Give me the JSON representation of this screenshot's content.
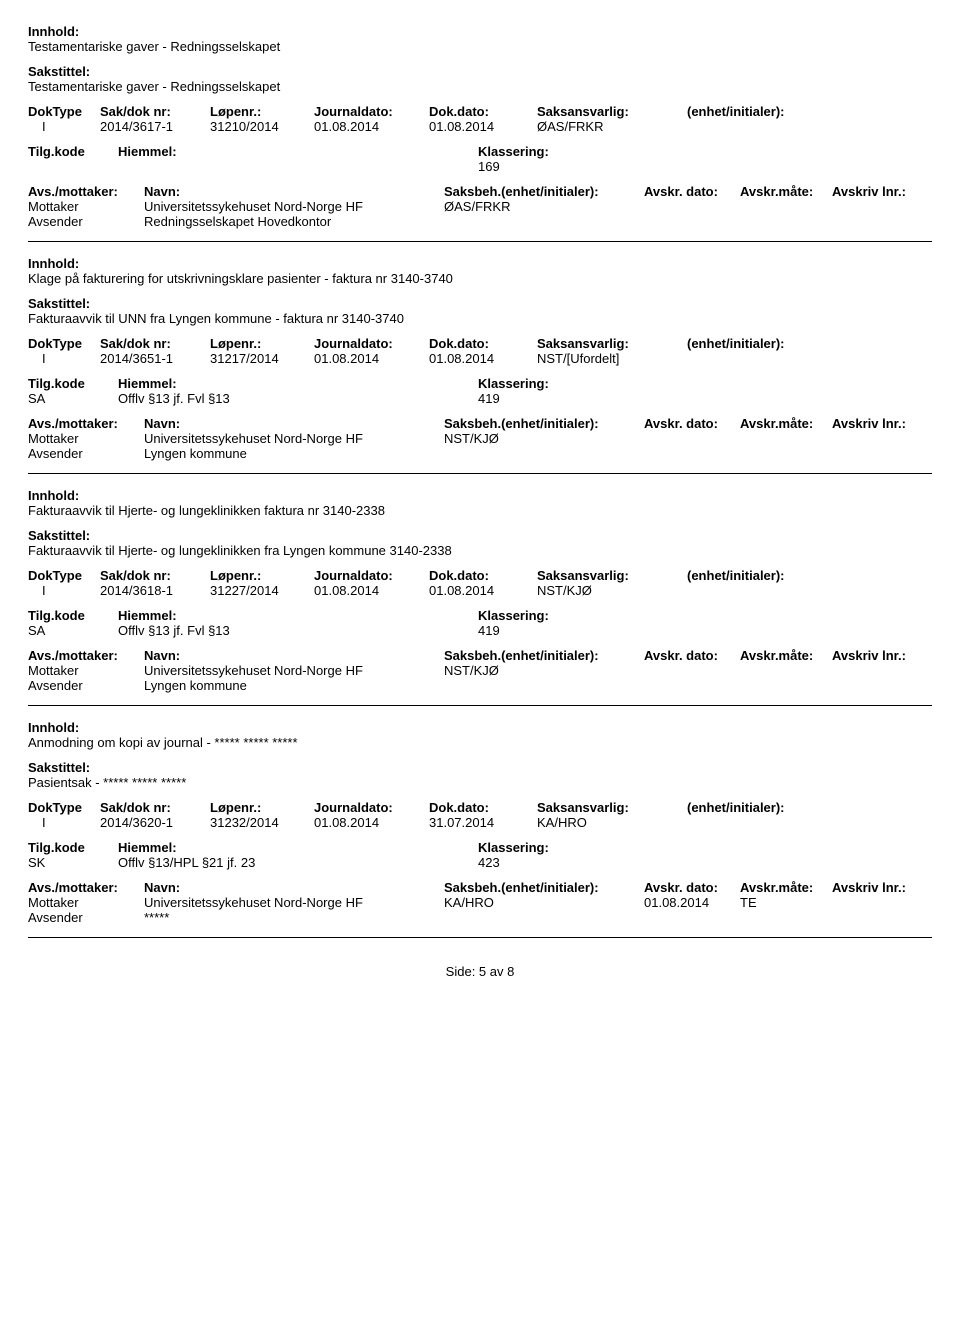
{
  "labels": {
    "innhold": "Innhold:",
    "sakstittel": "Sakstittel:",
    "doktype": "DokType",
    "sakdoknr": "Sak/dok nr:",
    "lopenr": "Løpenr.:",
    "journaldato": "Journaldato:",
    "dokdato": "Dok.dato:",
    "saksansvarlig": "Saksansvarlig:",
    "enhet": "(enhet/initialer):",
    "tilgkode": "Tilg.kode",
    "hjemmel": "Hiemmel:",
    "klassering": "Klassering:",
    "avsmottaker": "Avs./mottaker:",
    "navn": "Navn:",
    "saksbeh": "Saksbeh.(enhet/initialer):",
    "avskrdato": "Avskr. dato:",
    "avskrmate": "Avskr.måte:",
    "avskrivlnr": "Avskriv lnr.:",
    "mottaker": "Mottaker",
    "avsender": "Avsender"
  },
  "records": [
    {
      "innhold": "Testamentariske gaver - Redningsselskapet",
      "sakstittel": "Testamentariske gaver - Redningsselskapet",
      "doktype": "I",
      "sakdok": "2014/3617-1",
      "lopenr": "31210/2014",
      "jdato": "01.08.2014",
      "dokdato": "01.08.2014",
      "saksans": "ØAS/FRKR",
      "tilgkode": "",
      "hjemmel": "",
      "klassering": "169",
      "parties": [
        {
          "role": "Mottaker",
          "navn": "Universitetssykehuset Nord-Norge HF",
          "saksbeh": "ØAS/FRKR",
          "adato": "",
          "amate": ""
        },
        {
          "role": "Avsender",
          "navn": "Redningsselskapet Hovedkontor",
          "saksbeh": "",
          "adato": "",
          "amate": ""
        }
      ]
    },
    {
      "innhold": "Klage på fakturering for utskrivningsklare pasienter - faktura nr 3140-3740",
      "sakstittel": "Fakturaavvik til UNN fra Lyngen kommune - faktura nr 3140-3740",
      "doktype": "I",
      "sakdok": "2014/3651-1",
      "lopenr": "31217/2014",
      "jdato": "01.08.2014",
      "dokdato": "01.08.2014",
      "saksans": "NST/[Ufordelt]",
      "tilgkode": "SA",
      "hjemmel": "Offlv §13 jf. Fvl §13",
      "klassering": "419",
      "parties": [
        {
          "role": "Mottaker",
          "navn": "Universitetssykehuset Nord-Norge HF",
          "saksbeh": "NST/KJØ",
          "adato": "",
          "amate": ""
        },
        {
          "role": "Avsender",
          "navn": "Lyngen kommune",
          "saksbeh": "",
          "adato": "",
          "amate": ""
        }
      ]
    },
    {
      "innhold": "Fakturaavvik til Hjerte- og lungeklinikken faktura nr 3140-2338",
      "sakstittel": "Fakturaavvik til Hjerte- og lungeklinikken fra Lyngen kommune 3140-2338",
      "doktype": "I",
      "sakdok": "2014/3618-1",
      "lopenr": "31227/2014",
      "jdato": "01.08.2014",
      "dokdato": "01.08.2014",
      "saksans": "NST/KJØ",
      "tilgkode": "SA",
      "hjemmel": "Offlv §13 jf. Fvl §13",
      "klassering": "419",
      "parties": [
        {
          "role": "Mottaker",
          "navn": "Universitetssykehuset Nord-Norge HF",
          "saksbeh": "NST/KJØ",
          "adato": "",
          "amate": ""
        },
        {
          "role": "Avsender",
          "navn": "Lyngen kommune",
          "saksbeh": "",
          "adato": "",
          "amate": ""
        }
      ]
    },
    {
      "innhold": "Anmodning om kopi av journal - ***** ***** *****",
      "sakstittel": "Pasientsak - ***** ***** *****",
      "doktype": "I",
      "sakdok": "2014/3620-1",
      "lopenr": "31232/2014",
      "jdato": "01.08.2014",
      "dokdato": "31.07.2014",
      "saksans": "KA/HRO",
      "tilgkode": "SK",
      "hjemmel": "Offlv §13/HPL §21 jf. 23",
      "klassering": "423",
      "parties": [
        {
          "role": "Mottaker",
          "navn": "Universitetssykehuset Nord-Norge HF",
          "saksbeh": "KA/HRO",
          "adato": "01.08.2014",
          "amate": "TE"
        },
        {
          "role": "Avsender",
          "navn": "*****",
          "saksbeh": "",
          "adato": "",
          "amate": ""
        }
      ]
    }
  ],
  "footer": "Side:   5 av   8"
}
